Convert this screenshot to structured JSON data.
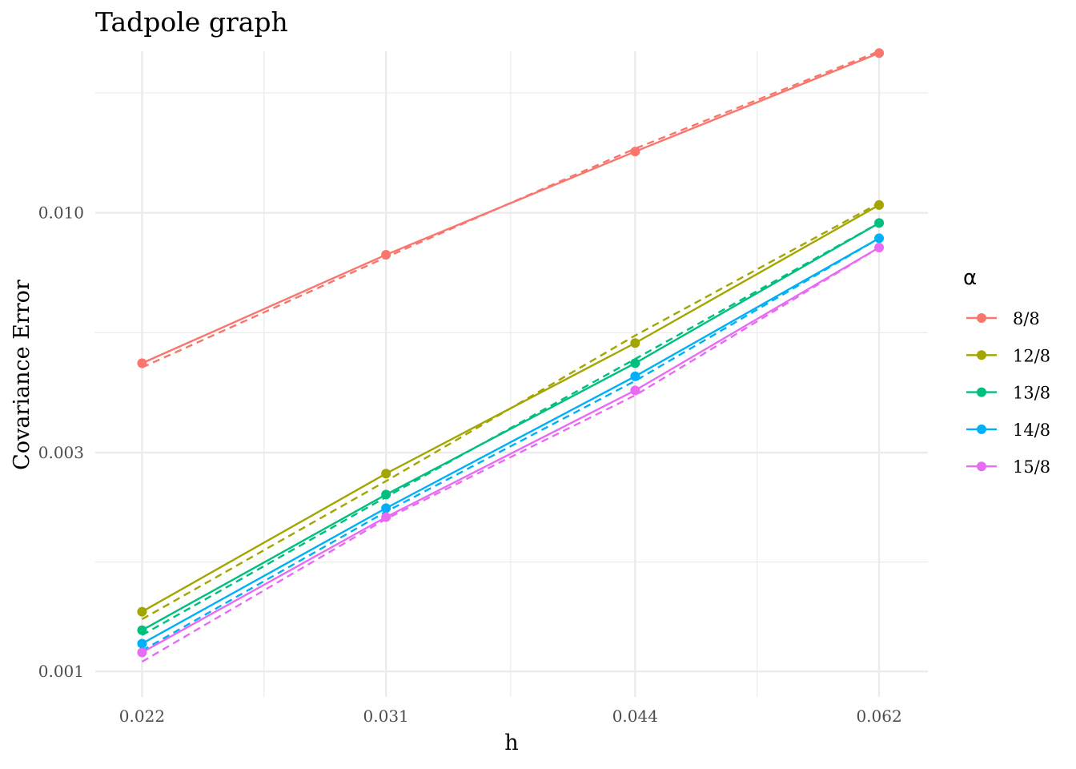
{
  "chart_data": {
    "type": "line",
    "title": "Tadpole graph",
    "xlabel": "h",
    "ylabel": "Covariance Error",
    "x_scale": "log",
    "y_scale": "log",
    "x": [
      0.022,
      0.031,
      0.044,
      0.062
    ],
    "x_tick_labels": [
      "0.022",
      "0.031",
      "0.044",
      "0.062"
    ],
    "y_ticks": [
      0.001,
      0.003,
      0.01
    ],
    "y_tick_labels": [
      "0.001",
      "0.003",
      "0.010"
    ],
    "xlim": [
      0.0206,
      0.0664
    ],
    "ylim": [
      0.00088,
      0.0225
    ],
    "grid": true,
    "legend_title": "α",
    "legend_position": "right",
    "series": [
      {
        "name": "8/8",
        "color": "#F8766D",
        "values": [
          0.0047,
          0.0081,
          0.0136,
          0.0223
        ],
        "fit": [
          0.0046,
          0.008,
          0.0138,
          0.0225
        ]
      },
      {
        "name": "12/8",
        "color": "#A3A500",
        "values": [
          0.00135,
          0.0027,
          0.0052,
          0.0104
        ],
        "fit": [
          0.0013,
          0.0026,
          0.0054,
          0.0105
        ]
      },
      {
        "name": "13/8",
        "color": "#00BF7D",
        "values": [
          0.00123,
          0.00243,
          0.0047,
          0.0095
        ],
        "fit": [
          0.0012,
          0.0024,
          0.0048,
          0.0095
        ]
      },
      {
        "name": "14/8",
        "color": "#00B0F6",
        "values": [
          0.00115,
          0.00227,
          0.0044,
          0.0088
        ],
        "fit": [
          0.00111,
          0.00223,
          0.0043,
          0.0088
        ]
      },
      {
        "name": "15/8",
        "color": "#E76BF3",
        "values": [
          0.0011,
          0.00217,
          0.0041,
          0.0084
        ],
        "fit": [
          0.00105,
          0.00215,
          0.004,
          0.0084
        ]
      }
    ]
  }
}
